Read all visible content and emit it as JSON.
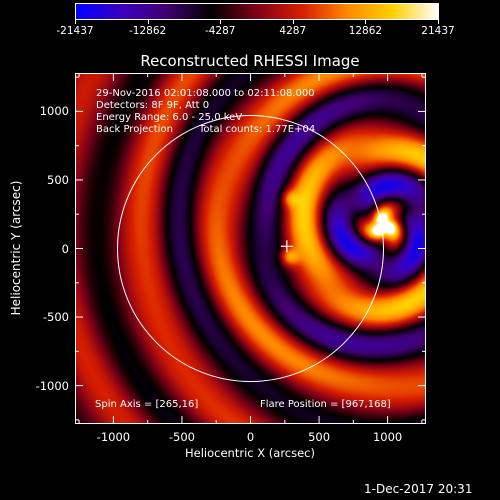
{
  "colorbar": {
    "tick_labels": [
      "-21437",
      "-12862",
      "-4287",
      "4287",
      "12862",
      "21437"
    ],
    "min": -21437,
    "max": 21437,
    "colormap": [
      "#0000ff",
      "#3a00c0",
      "#400070",
      "#000000",
      "#800018",
      "#d81e00",
      "#ff8800",
      "#ffd000",
      "#ffffff"
    ]
  },
  "title": "Reconstructed RHESSI Image",
  "info": {
    "line1": "29-Nov-2016 02:01:08.000 to 02:11:08.000",
    "line2": "Detectors: 8F 9F, Att 0",
    "line3": "Energy Range: 6.0 - 25.0 keV",
    "line4_a": "Back Projection",
    "line4_b": "Total counts: 1.77E+04"
  },
  "footer": {
    "spin_axis": "Spin Axis = [265,16]",
    "flare_position": "Flare Position = [967,168]"
  },
  "axes": {
    "xlabel": "Heliocentric X (arcsec)",
    "ylabel": "Heliocentric Y (arcsec)",
    "xlim": [
      -1280,
      1280
    ],
    "ylim": [
      -1280,
      1280
    ],
    "xticks": [
      -1000,
      -500,
      0,
      500,
      1000
    ],
    "yticks": [
      1000,
      500,
      0,
      -500,
      -1000
    ]
  },
  "image": {
    "spin_axis": [
      265,
      16
    ],
    "flare_position": [
      967,
      168
    ],
    "solar_limb_radius": 970
  },
  "timestamp": "1-Dec-2017 20:31"
}
